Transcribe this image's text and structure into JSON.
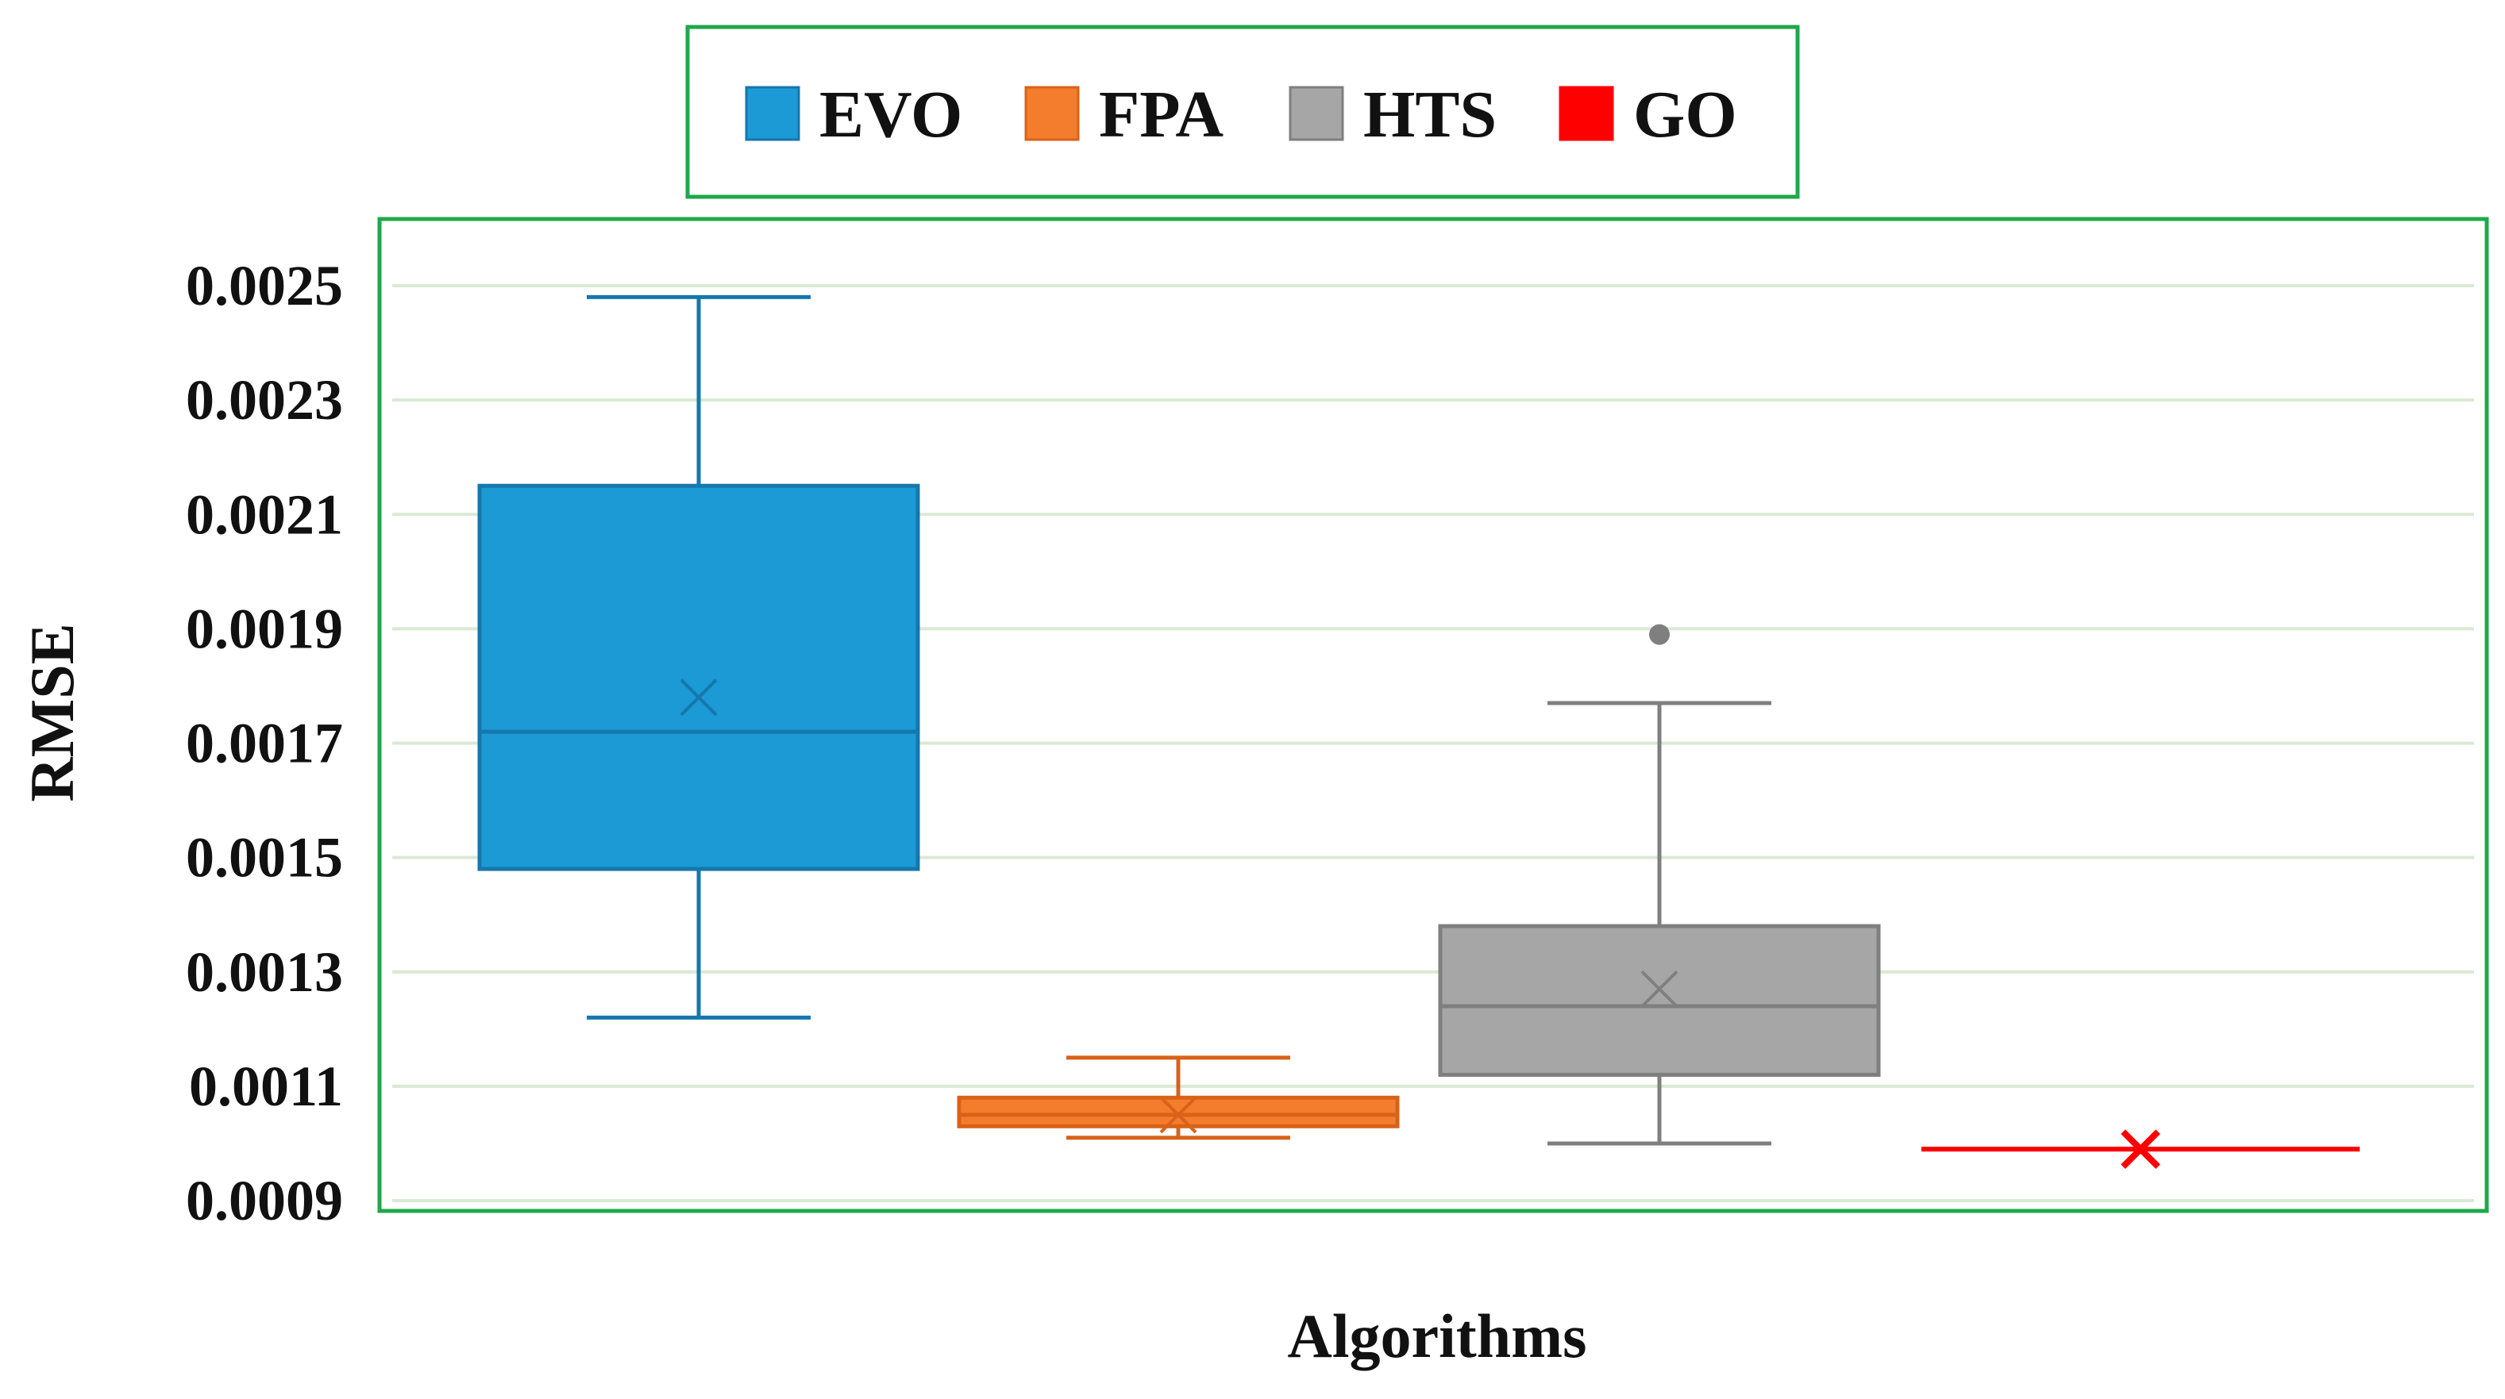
{
  "chart_data": {
    "type": "boxplot",
    "xlabel": "Algorithms",
    "ylabel": "RMSE",
    "ylim": [
      0.0009,
      0.0026
    ],
    "yticks": [
      "0.0025",
      "0.0023",
      "0.0021",
      "0.0019",
      "0.0017",
      "0.0015",
      "0.0013",
      "0.0011",
      "0.0009"
    ],
    "ytick_values": [
      0.0025,
      0.0023,
      0.0021,
      0.0019,
      0.0017,
      0.0015,
      0.0013,
      0.0011,
      0.0009
    ],
    "grid": true,
    "legend": {
      "position": "top-center"
    },
    "series": [
      {
        "name": "EVO",
        "color": "#1b9ad6",
        "stroke": "#1577ad",
        "min": 0.00122,
        "q1": 0.00148,
        "median": 0.00172,
        "q3": 0.00215,
        "max": 0.00248,
        "mean": 0.00178,
        "outliers": []
      },
      {
        "name": "FPA",
        "color": "#f47d2d",
        "stroke": "#d8621a",
        "min": 0.00101,
        "q1": 0.00103,
        "median": 0.00105,
        "q3": 0.00108,
        "max": 0.00115,
        "mean": 0.00105,
        "outliers": []
      },
      {
        "name": "HTS",
        "color": "#a6a6a6",
        "stroke": "#7f7f7f",
        "min": 0.001,
        "q1": 0.00112,
        "median": 0.00124,
        "q3": 0.00138,
        "max": 0.00177,
        "mean": 0.00127,
        "outliers": [
          0.00189
        ]
      },
      {
        "name": "GO",
        "color": "#ff0000",
        "stroke": "#ff0000",
        "min": 0.00099,
        "q1": 0.00099,
        "median": 0.00099,
        "q3": 0.00099,
        "max": 0.00099,
        "mean": 0.00099,
        "outliers": []
      }
    ]
  }
}
